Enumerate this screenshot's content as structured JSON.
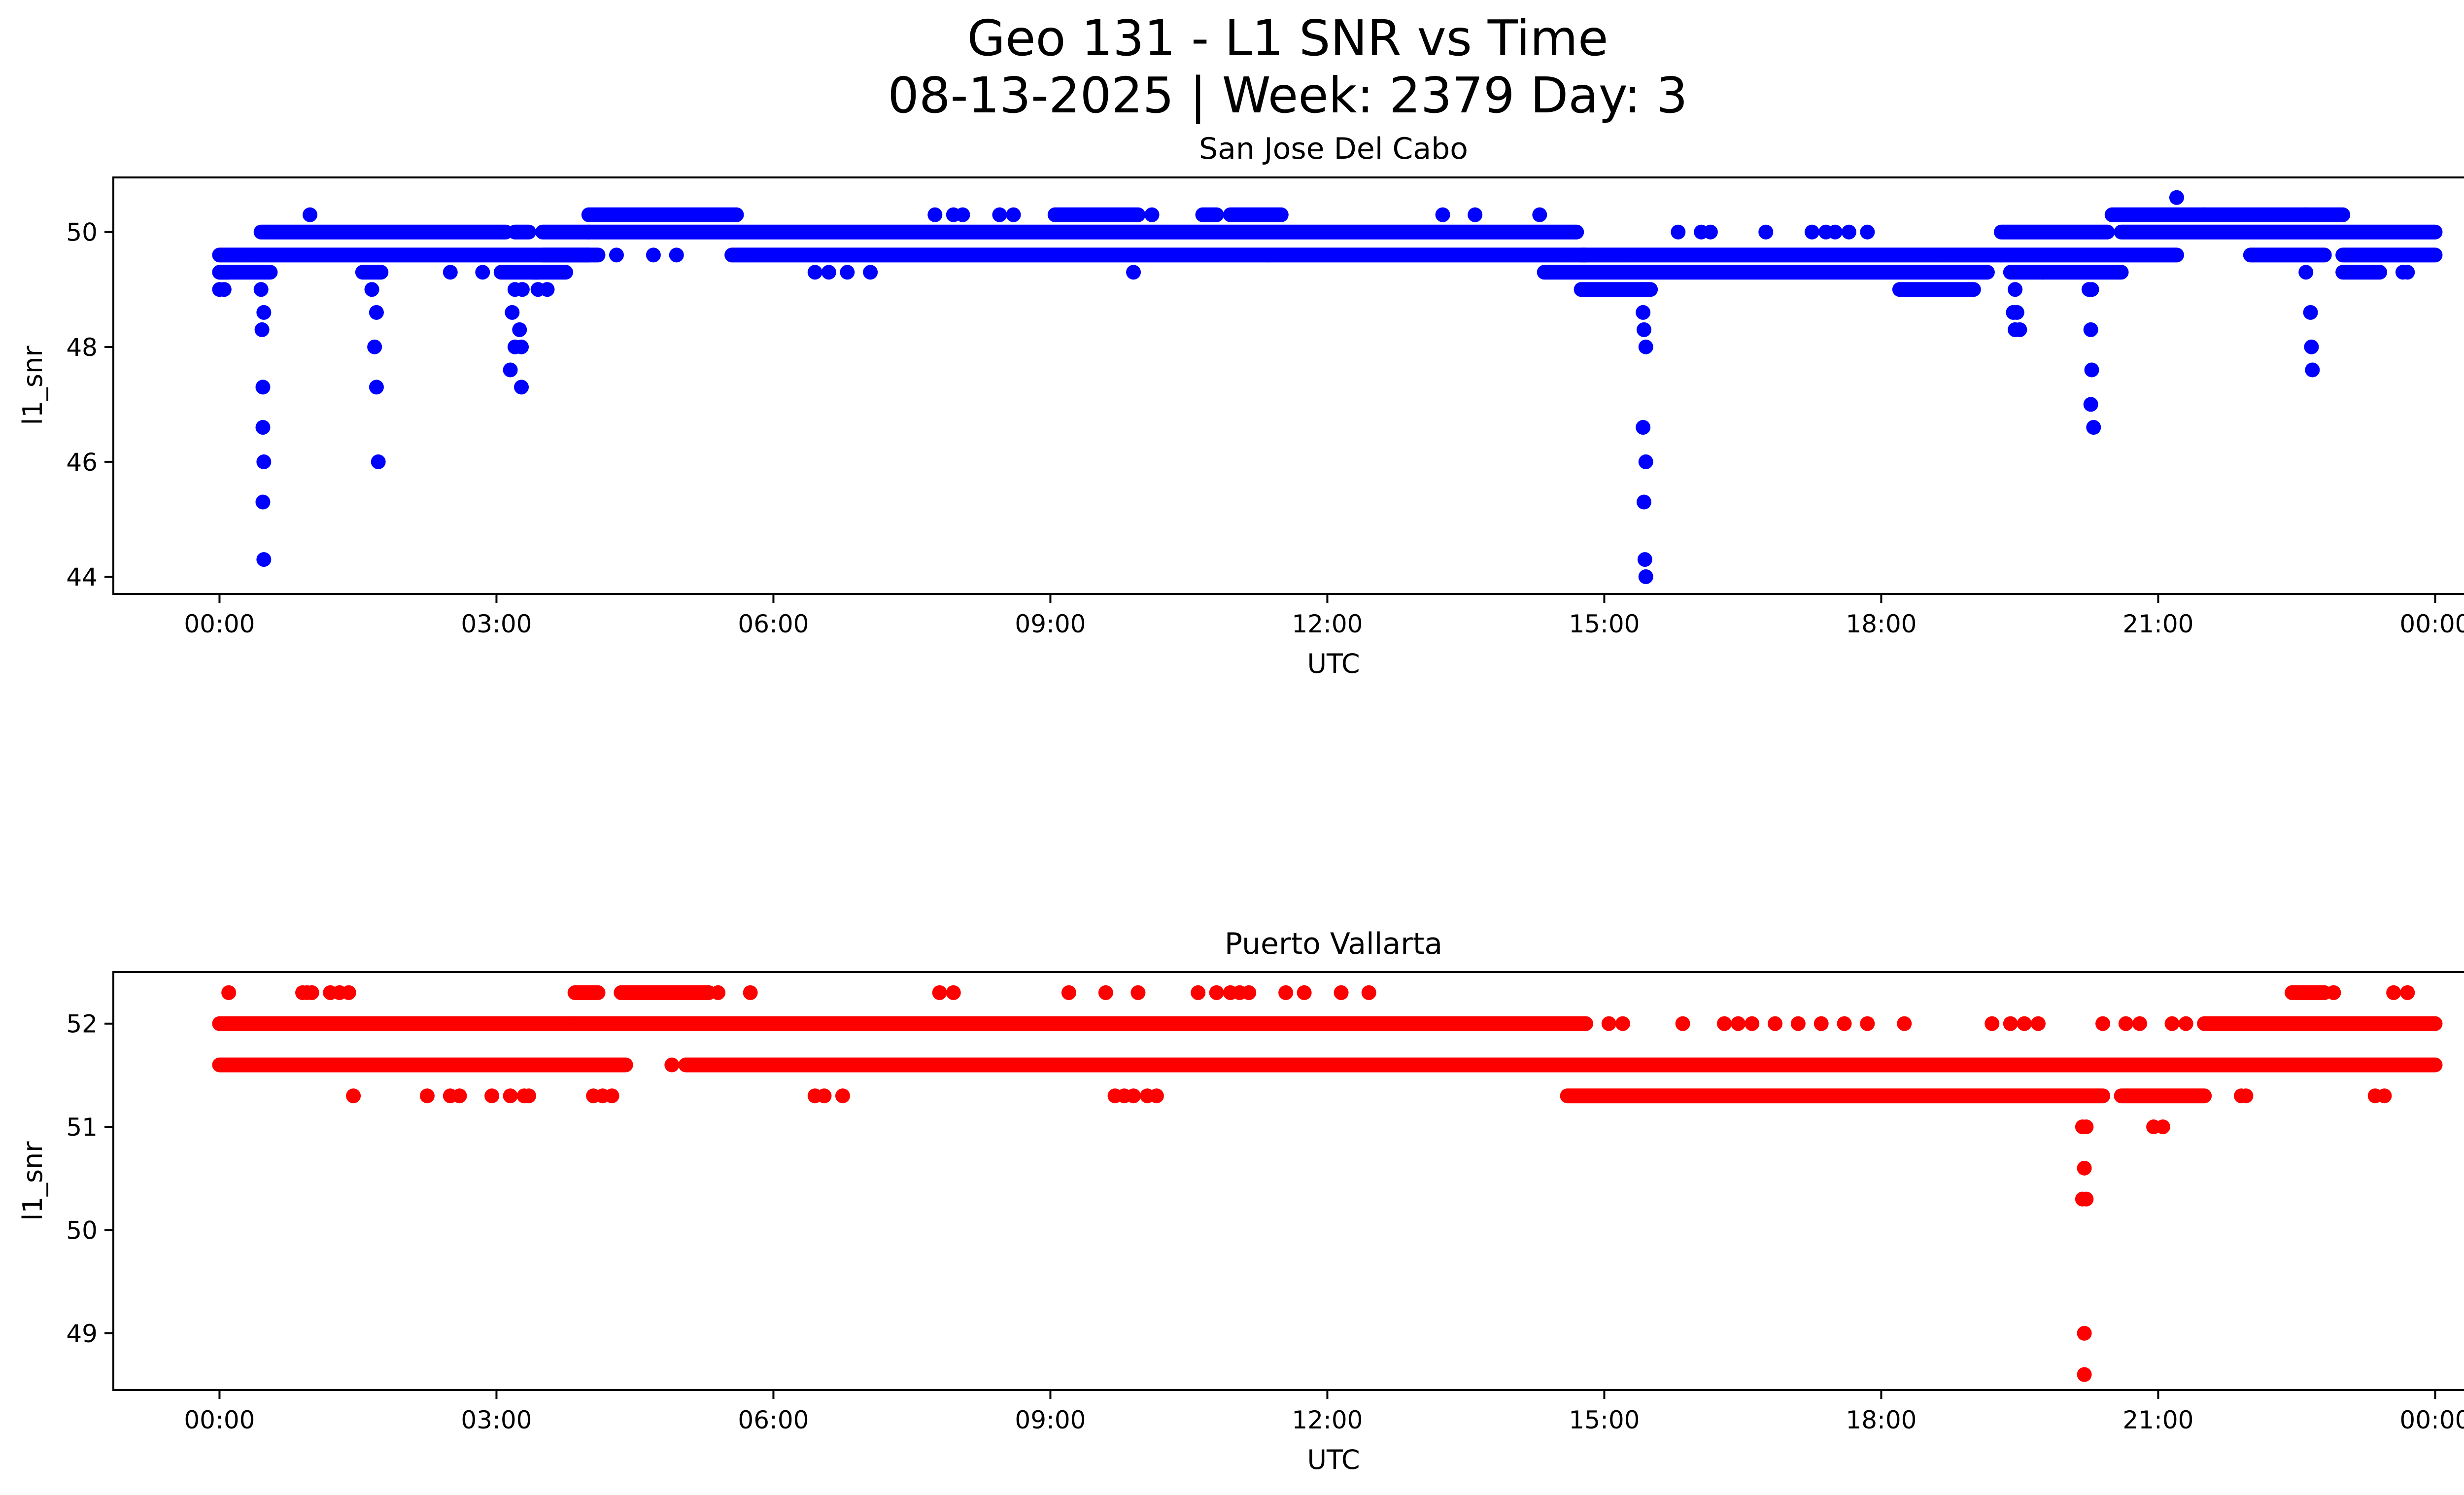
{
  "chart_data": [
    {
      "type": "scatter",
      "title": "Geo 131 - L1 SNR vs Time",
      "subtitle": "08-13-2025 | Week: 2379 Day: 3",
      "panel_title": "San Jose Del Cabo",
      "xlabel": "UTC",
      "ylabel": "l1_snr",
      "color": "#0000ff",
      "xlim_hours": [
        -1.15,
        25.3
      ],
      "ylim": [
        43.7,
        50.95
      ],
      "x_ticks": [
        "00:00",
        "03:00",
        "06:00",
        "09:00",
        "12:00",
        "15:00",
        "18:00",
        "21:00",
        "00:00"
      ],
      "y_ticks": [
        44,
        46,
        48,
        50
      ],
      "grid": false,
      "bands": [
        {
          "y": 49.3,
          "from_hour": 0.0,
          "to_hour": 0.1
        },
        {
          "y": 49.3,
          "from_hour": 0.0,
          "to_hour": 0.55
        },
        {
          "y": 49.6,
          "from_hour": 0.0,
          "to_hour": 4.0
        },
        {
          "y": 50.0,
          "from_hour": 0.45,
          "to_hour": 3.1
        },
        {
          "y": 49.3,
          "from_hour": 1.55,
          "to_hour": 1.75
        },
        {
          "y": 49.3,
          "from_hour": 3.05,
          "to_hour": 3.45
        },
        {
          "y": 50.0,
          "from_hour": 3.2,
          "to_hour": 3.35
        },
        {
          "y": 49.6,
          "from_hour": 3.5,
          "to_hour": 4.1
        },
        {
          "y": 50.0,
          "from_hour": 3.5,
          "to_hour": 4.0
        },
        {
          "y": 49.3,
          "from_hour": 3.4,
          "to_hour": 3.75
        },
        {
          "y": 50.3,
          "from_hour": 4.0,
          "to_hour": 5.6
        },
        {
          "y": 50.0,
          "from_hour": 4.0,
          "to_hour": 14.7
        },
        {
          "y": 49.6,
          "from_hour": 5.55,
          "to_hour": 14.8
        },
        {
          "y": 50.3,
          "from_hour": 9.05,
          "to_hour": 9.95
        },
        {
          "y": 50.3,
          "from_hour": 10.65,
          "to_hour": 10.8
        },
        {
          "y": 50.3,
          "from_hour": 10.95,
          "to_hour": 11.5
        },
        {
          "y": 49.6,
          "from_hour": 14.75,
          "to_hour": 19.3
        },
        {
          "y": 49.3,
          "from_hour": 14.35,
          "to_hour": 19.15
        },
        {
          "y": 49.0,
          "from_hour": 14.75,
          "to_hour": 15.5
        },
        {
          "y": 49.0,
          "from_hour": 18.2,
          "to_hour": 19.0
        },
        {
          "y": 50.0,
          "from_hour": 19.3,
          "to_hour": 20.45
        },
        {
          "y": 49.6,
          "from_hour": 19.3,
          "to_hour": 21.2
        },
        {
          "y": 49.3,
          "from_hour": 19.4,
          "to_hour": 20.6
        },
        {
          "y": 50.0,
          "from_hour": 20.6,
          "to_hour": 24.0
        },
        {
          "y": 50.3,
          "from_hour": 20.5,
          "to_hour": 22.6
        },
        {
          "y": 50.3,
          "from_hour": 22.6,
          "to_hour": 23.0
        },
        {
          "y": 49.6,
          "from_hour": 22.0,
          "to_hour": 22.8
        },
        {
          "y": 49.6,
          "from_hour": 23.0,
          "to_hour": 24.0
        },
        {
          "y": 49.3,
          "from_hour": 23.0,
          "to_hour": 23.4
        }
      ],
      "points": [
        [
          0.0,
          49.0
        ],
        [
          0.05,
          49.0
        ],
        [
          0.45,
          49.0
        ],
        [
          0.48,
          48.6
        ],
        [
          0.46,
          48.3
        ],
        [
          0.47,
          47.3
        ],
        [
          0.47,
          46.6
        ],
        [
          0.48,
          46.0
        ],
        [
          0.47,
          45.3
        ],
        [
          0.48,
          44.3
        ],
        [
          0.98,
          50.3
        ],
        [
          1.65,
          49.0
        ],
        [
          1.7,
          48.6
        ],
        [
          1.68,
          48.0
        ],
        [
          1.7,
          47.3
        ],
        [
          1.72,
          46.0
        ],
        [
          2.5,
          49.3
        ],
        [
          2.85,
          49.3
        ],
        [
          3.2,
          49.0
        ],
        [
          3.28,
          49.0
        ],
        [
          3.17,
          48.6
        ],
        [
          3.25,
          48.3
        ],
        [
          3.2,
          48.0
        ],
        [
          3.27,
          48.0
        ],
        [
          3.15,
          47.6
        ],
        [
          3.27,
          47.3
        ],
        [
          3.45,
          49.0
        ],
        [
          3.55,
          49.0
        ],
        [
          3.8,
          49.6
        ],
        [
          4.0,
          49.6
        ],
        [
          4.3,
          49.6
        ],
        [
          4.7,
          49.6
        ],
        [
          4.95,
          49.6
        ],
        [
          6.45,
          49.3
        ],
        [
          6.6,
          49.3
        ],
        [
          6.8,
          49.3
        ],
        [
          7.05,
          49.3
        ],
        [
          7.75,
          50.3
        ],
        [
          7.95,
          50.3
        ],
        [
          8.05,
          50.3
        ],
        [
          8.45,
          50.3
        ],
        [
          8.6,
          50.3
        ],
        [
          9.9,
          49.3
        ],
        [
          10.1,
          50.3
        ],
        [
          11.35,
          49.6
        ],
        [
          13.25,
          50.3
        ],
        [
          13.6,
          50.3
        ],
        [
          14.3,
          50.3
        ],
        [
          15.4,
          49.0
        ],
        [
          15.42,
          48.6
        ],
        [
          15.43,
          48.3
        ],
        [
          15.45,
          48.0
        ],
        [
          15.42,
          46.6
        ],
        [
          15.45,
          46.0
        ],
        [
          15.43,
          45.3
        ],
        [
          15.44,
          44.3
        ],
        [
          15.45,
          44.0
        ],
        [
          15.8,
          50.0
        ],
        [
          16.05,
          50.0
        ],
        [
          16.15,
          50.0
        ],
        [
          16.75,
          50.0
        ],
        [
          17.25,
          50.0
        ],
        [
          17.4,
          50.0
        ],
        [
          17.5,
          50.0
        ],
        [
          17.65,
          50.0
        ],
        [
          17.85,
          50.0
        ],
        [
          19.45,
          49.0
        ],
        [
          19.43,
          48.6
        ],
        [
          19.47,
          48.6
        ],
        [
          19.45,
          48.3
        ],
        [
          19.5,
          48.3
        ],
        [
          19.75,
          49.3
        ],
        [
          20.25,
          49.0
        ],
        [
          20.28,
          49.0
        ],
        [
          20.27,
          48.3
        ],
        [
          20.28,
          47.6
        ],
        [
          20.27,
          47.0
        ],
        [
          20.3,
          46.6
        ],
        [
          21.2,
          50.6
        ],
        [
          21.5,
          50.3
        ],
        [
          22.6,
          49.3
        ],
        [
          22.65,
          48.6
        ],
        [
          22.66,
          48.0
        ],
        [
          22.67,
          47.6
        ],
        [
          23.65,
          49.3
        ],
        [
          23.7,
          49.3
        ]
      ]
    },
    {
      "type": "scatter",
      "panel_title": "Puerto Vallarta",
      "xlabel": "UTC",
      "ylabel": "l1_snr",
      "color": "#ff0000",
      "xlim_hours": [
        -1.15,
        25.3
      ],
      "ylim": [
        48.45,
        52.5
      ],
      "x_ticks": [
        "00:00",
        "03:00",
        "06:00",
        "09:00",
        "12:00",
        "15:00",
        "18:00",
        "21:00",
        "00:00"
      ],
      "y_ticks": [
        49,
        50,
        51,
        52
      ],
      "grid": false,
      "bands": [
        {
          "y": 51.6,
          "from_hour": 0.0,
          "to_hour": 4.4
        },
        {
          "y": 52.0,
          "from_hour": 0.0,
          "to_hour": 3.8
        },
        {
          "y": 52.0,
          "from_hour": 3.8,
          "to_hour": 14.8
        },
        {
          "y": 52.3,
          "from_hour": 3.85,
          "to_hour": 4.1
        },
        {
          "y": 52.3,
          "from_hour": 4.35,
          "to_hour": 5.3
        },
        {
          "y": 51.6,
          "from_hour": 5.05,
          "to_hour": 20.1
        },
        {
          "y": 51.3,
          "from_hour": 14.6,
          "to_hour": 20.4
        },
        {
          "y": 51.3,
          "from_hour": 20.6,
          "to_hour": 21.5
        },
        {
          "y": 51.6,
          "from_hour": 20.1,
          "to_hour": 24.0
        },
        {
          "y": 52.0,
          "from_hour": 21.5,
          "to_hour": 24.0
        },
        {
          "y": 52.3,
          "from_hour": 22.45,
          "to_hour": 22.8
        }
      ],
      "points": [
        [
          0.1,
          52.3
        ],
        [
          0.9,
          52.3
        ],
        [
          0.95,
          52.3
        ],
        [
          1.0,
          52.3
        ],
        [
          1.2,
          52.3
        ],
        [
          1.3,
          52.3
        ],
        [
          1.4,
          52.3
        ],
        [
          1.45,
          51.3
        ],
        [
          2.25,
          51.3
        ],
        [
          2.5,
          51.3
        ],
        [
          2.6,
          51.3
        ],
        [
          2.95,
          51.3
        ],
        [
          3.15,
          51.3
        ],
        [
          3.3,
          51.3
        ],
        [
          3.35,
          51.3
        ],
        [
          4.05,
          51.3
        ],
        [
          4.15,
          51.3
        ],
        [
          4.25,
          51.3
        ],
        [
          5.4,
          52.3
        ],
        [
          5.75,
          52.3
        ],
        [
          4.9,
          51.6
        ],
        [
          6.45,
          51.3
        ],
        [
          6.55,
          51.3
        ],
        [
          6.75,
          51.3
        ],
        [
          7.8,
          52.3
        ],
        [
          7.95,
          52.3
        ],
        [
          9.2,
          52.3
        ],
        [
          9.6,
          52.3
        ],
        [
          9.95,
          52.3
        ],
        [
          9.7,
          51.3
        ],
        [
          9.8,
          51.3
        ],
        [
          9.9,
          51.3
        ],
        [
          10.05,
          51.3
        ],
        [
          10.15,
          51.3
        ],
        [
          10.6,
          52.3
        ],
        [
          10.8,
          52.3
        ],
        [
          10.95,
          52.3
        ],
        [
          11.05,
          52.3
        ],
        [
          11.15,
          52.3
        ],
        [
          11.55,
          52.3
        ],
        [
          11.75,
          52.3
        ],
        [
          12.15,
          52.3
        ],
        [
          12.45,
          52.3
        ],
        [
          15.05,
          52.0
        ],
        [
          15.2,
          52.0
        ],
        [
          15.85,
          52.0
        ],
        [
          16.3,
          52.0
        ],
        [
          16.45,
          52.0
        ],
        [
          16.6,
          52.0
        ],
        [
          16.85,
          52.0
        ],
        [
          17.1,
          52.0
        ],
        [
          17.35,
          52.0
        ],
        [
          17.6,
          52.0
        ],
        [
          17.85,
          52.0
        ],
        [
          18.25,
          52.0
        ],
        [
          19.2,
          52.0
        ],
        [
          19.4,
          52.0
        ],
        [
          19.55,
          52.0
        ],
        [
          19.7,
          52.0
        ],
        [
          20.4,
          52.0
        ],
        [
          20.65,
          52.0
        ],
        [
          20.8,
          52.0
        ],
        [
          21.15,
          52.0
        ],
        [
          21.3,
          52.0
        ],
        [
          20.18,
          51.0
        ],
        [
          20.22,
          51.0
        ],
        [
          20.2,
          50.6
        ],
        [
          20.18,
          50.3
        ],
        [
          20.22,
          50.3
        ],
        [
          20.2,
          49.0
        ],
        [
          20.2,
          48.6
        ],
        [
          20.95,
          51.0
        ],
        [
          21.05,
          51.0
        ],
        [
          21.9,
          51.3
        ],
        [
          21.95,
          51.3
        ],
        [
          23.35,
          51.3
        ],
        [
          23.45,
          51.3
        ],
        [
          22.9,
          52.3
        ],
        [
          23.55,
          52.3
        ],
        [
          23.7,
          52.3
        ]
      ]
    }
  ]
}
